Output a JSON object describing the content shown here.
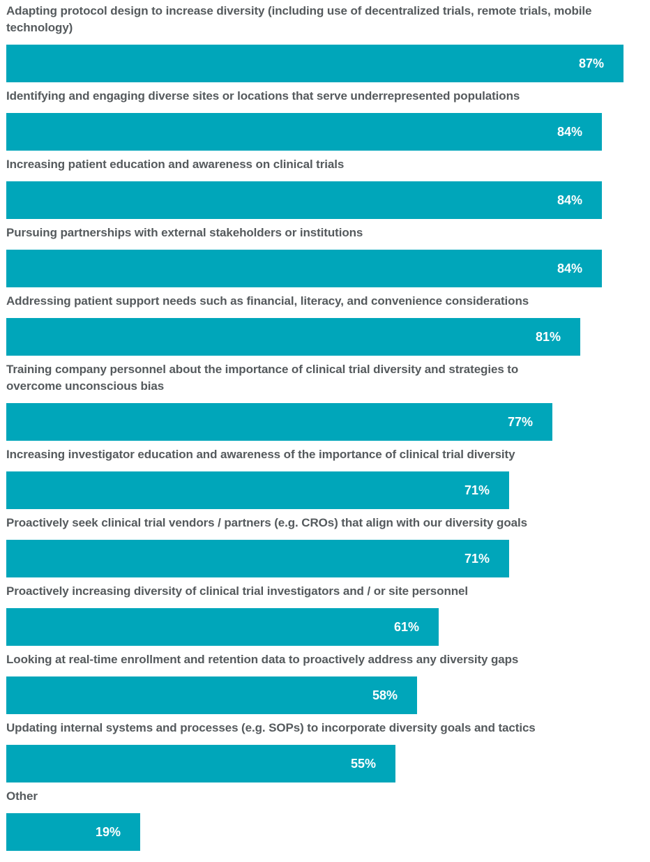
{
  "chart_data": {
    "type": "bar",
    "orientation": "horizontal",
    "categories": [
      "Adapting protocol design to increase diversity (including use of decentralized trials, remote trials, mobile technology)",
      "Identifying and engaging diverse sites or locations that serve underrepresented populations",
      "Increasing patient education and awareness on clinical trials",
      "Pursuing partnerships with external stakeholders or institutions",
      "Addressing patient support needs such as financial, literacy, and convenience considerations",
      "Training company personnel about the importance of clinical trial diversity and strategies to overcome unconscious bias",
      "Increasing investigator education and awareness of the importance of clinical trial diversity",
      "Proactively seek clinical trial vendors / partners (e.g. CROs) that align with our diversity goals",
      "Proactively increasing diversity of clinical trial investigators and / or site personnel",
      "Looking at real-time enrollment and retention data to proactively address any diversity gaps",
      "Updating internal systems and processes (e.g. SOPs) to incorporate diversity goals and tactics",
      "Other"
    ],
    "values": [
      87,
      84,
      84,
      84,
      81,
      77,
      71,
      71,
      61,
      58,
      55,
      19
    ],
    "value_labels": [
      "87%",
      "84%",
      "84%",
      "84%",
      "81%",
      "77%",
      "71%",
      "71%",
      "61%",
      "58%",
      "55%",
      "19%"
    ],
    "xlim": [
      0,
      100
    ],
    "grid": false,
    "bar_color": "#00a6ba",
    "label_color": "#555a5d",
    "value_label_color": "#ffffff"
  }
}
